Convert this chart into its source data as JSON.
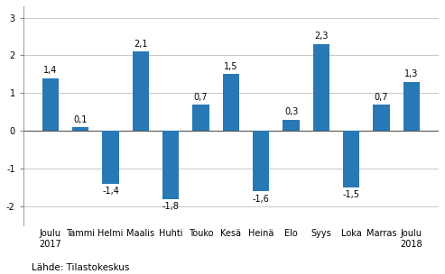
{
  "categories": [
    "Joulu\n2017",
    "Tammi",
    "Helmi",
    "Maalis",
    "Huhti",
    "Touko",
    "Kesä",
    "Heinä",
    "Elo",
    "Syys",
    "Loka",
    "Marras",
    "Joulu\n2018"
  ],
  "values": [
    1.4,
    0.1,
    -1.4,
    2.1,
    -1.8,
    0.7,
    1.5,
    -1.6,
    0.3,
    2.3,
    -1.5,
    0.7,
    1.3
  ],
  "bar_color": "#2878b5",
  "ylim": [
    -2.5,
    3.3
  ],
  "yticks": [
    -2,
    -1,
    0,
    1,
    2,
    3
  ],
  "footer": "Lähde: Tilastokeskus",
  "background_color": "#ffffff",
  "grid_color": "#c8c8c8",
  "label_fontsize": 7.0,
  "value_fontsize": 7.0,
  "footer_fontsize": 7.5,
  "bar_width": 0.55
}
